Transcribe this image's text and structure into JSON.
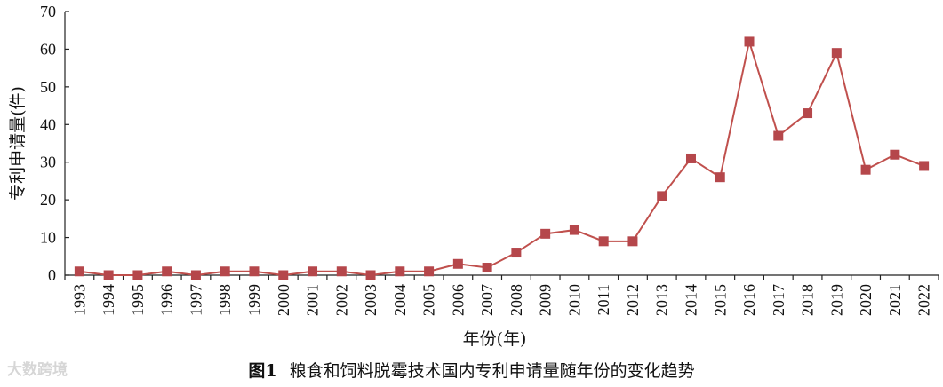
{
  "chart_data": {
    "type": "line",
    "xlabel": "年份(年)",
    "ylabel": "专利申请量(件)",
    "ylim": [
      0,
      70
    ],
    "yticks": [
      0,
      10,
      20,
      30,
      40,
      50,
      60,
      70
    ],
    "grid": false,
    "x": [
      "1993",
      "1994",
      "1995",
      "1996",
      "1997",
      "1998",
      "1999",
      "2000",
      "2001",
      "2002",
      "2003",
      "2004",
      "2005",
      "2006",
      "2007",
      "2008",
      "2009",
      "2010",
      "2011",
      "2012",
      "2013",
      "2014",
      "2015",
      "2016",
      "2017",
      "2018",
      "2019",
      "2020",
      "2021",
      "2022"
    ],
    "values": [
      1,
      0,
      0,
      1,
      0,
      1,
      1,
      0,
      1,
      1,
      0,
      1,
      1,
      3,
      2,
      6,
      11,
      12,
      9,
      9,
      21,
      31,
      26,
      62,
      37,
      43,
      59,
      28,
      32,
      29
    ],
    "line_color": "#c0504d",
    "marker_color": "#b5474b"
  },
  "caption": {
    "label": "图1",
    "text": "粮食和饲料脱霉技术国内专利申请量随年份的变化趋势"
  },
  "watermark": "大数跨境"
}
